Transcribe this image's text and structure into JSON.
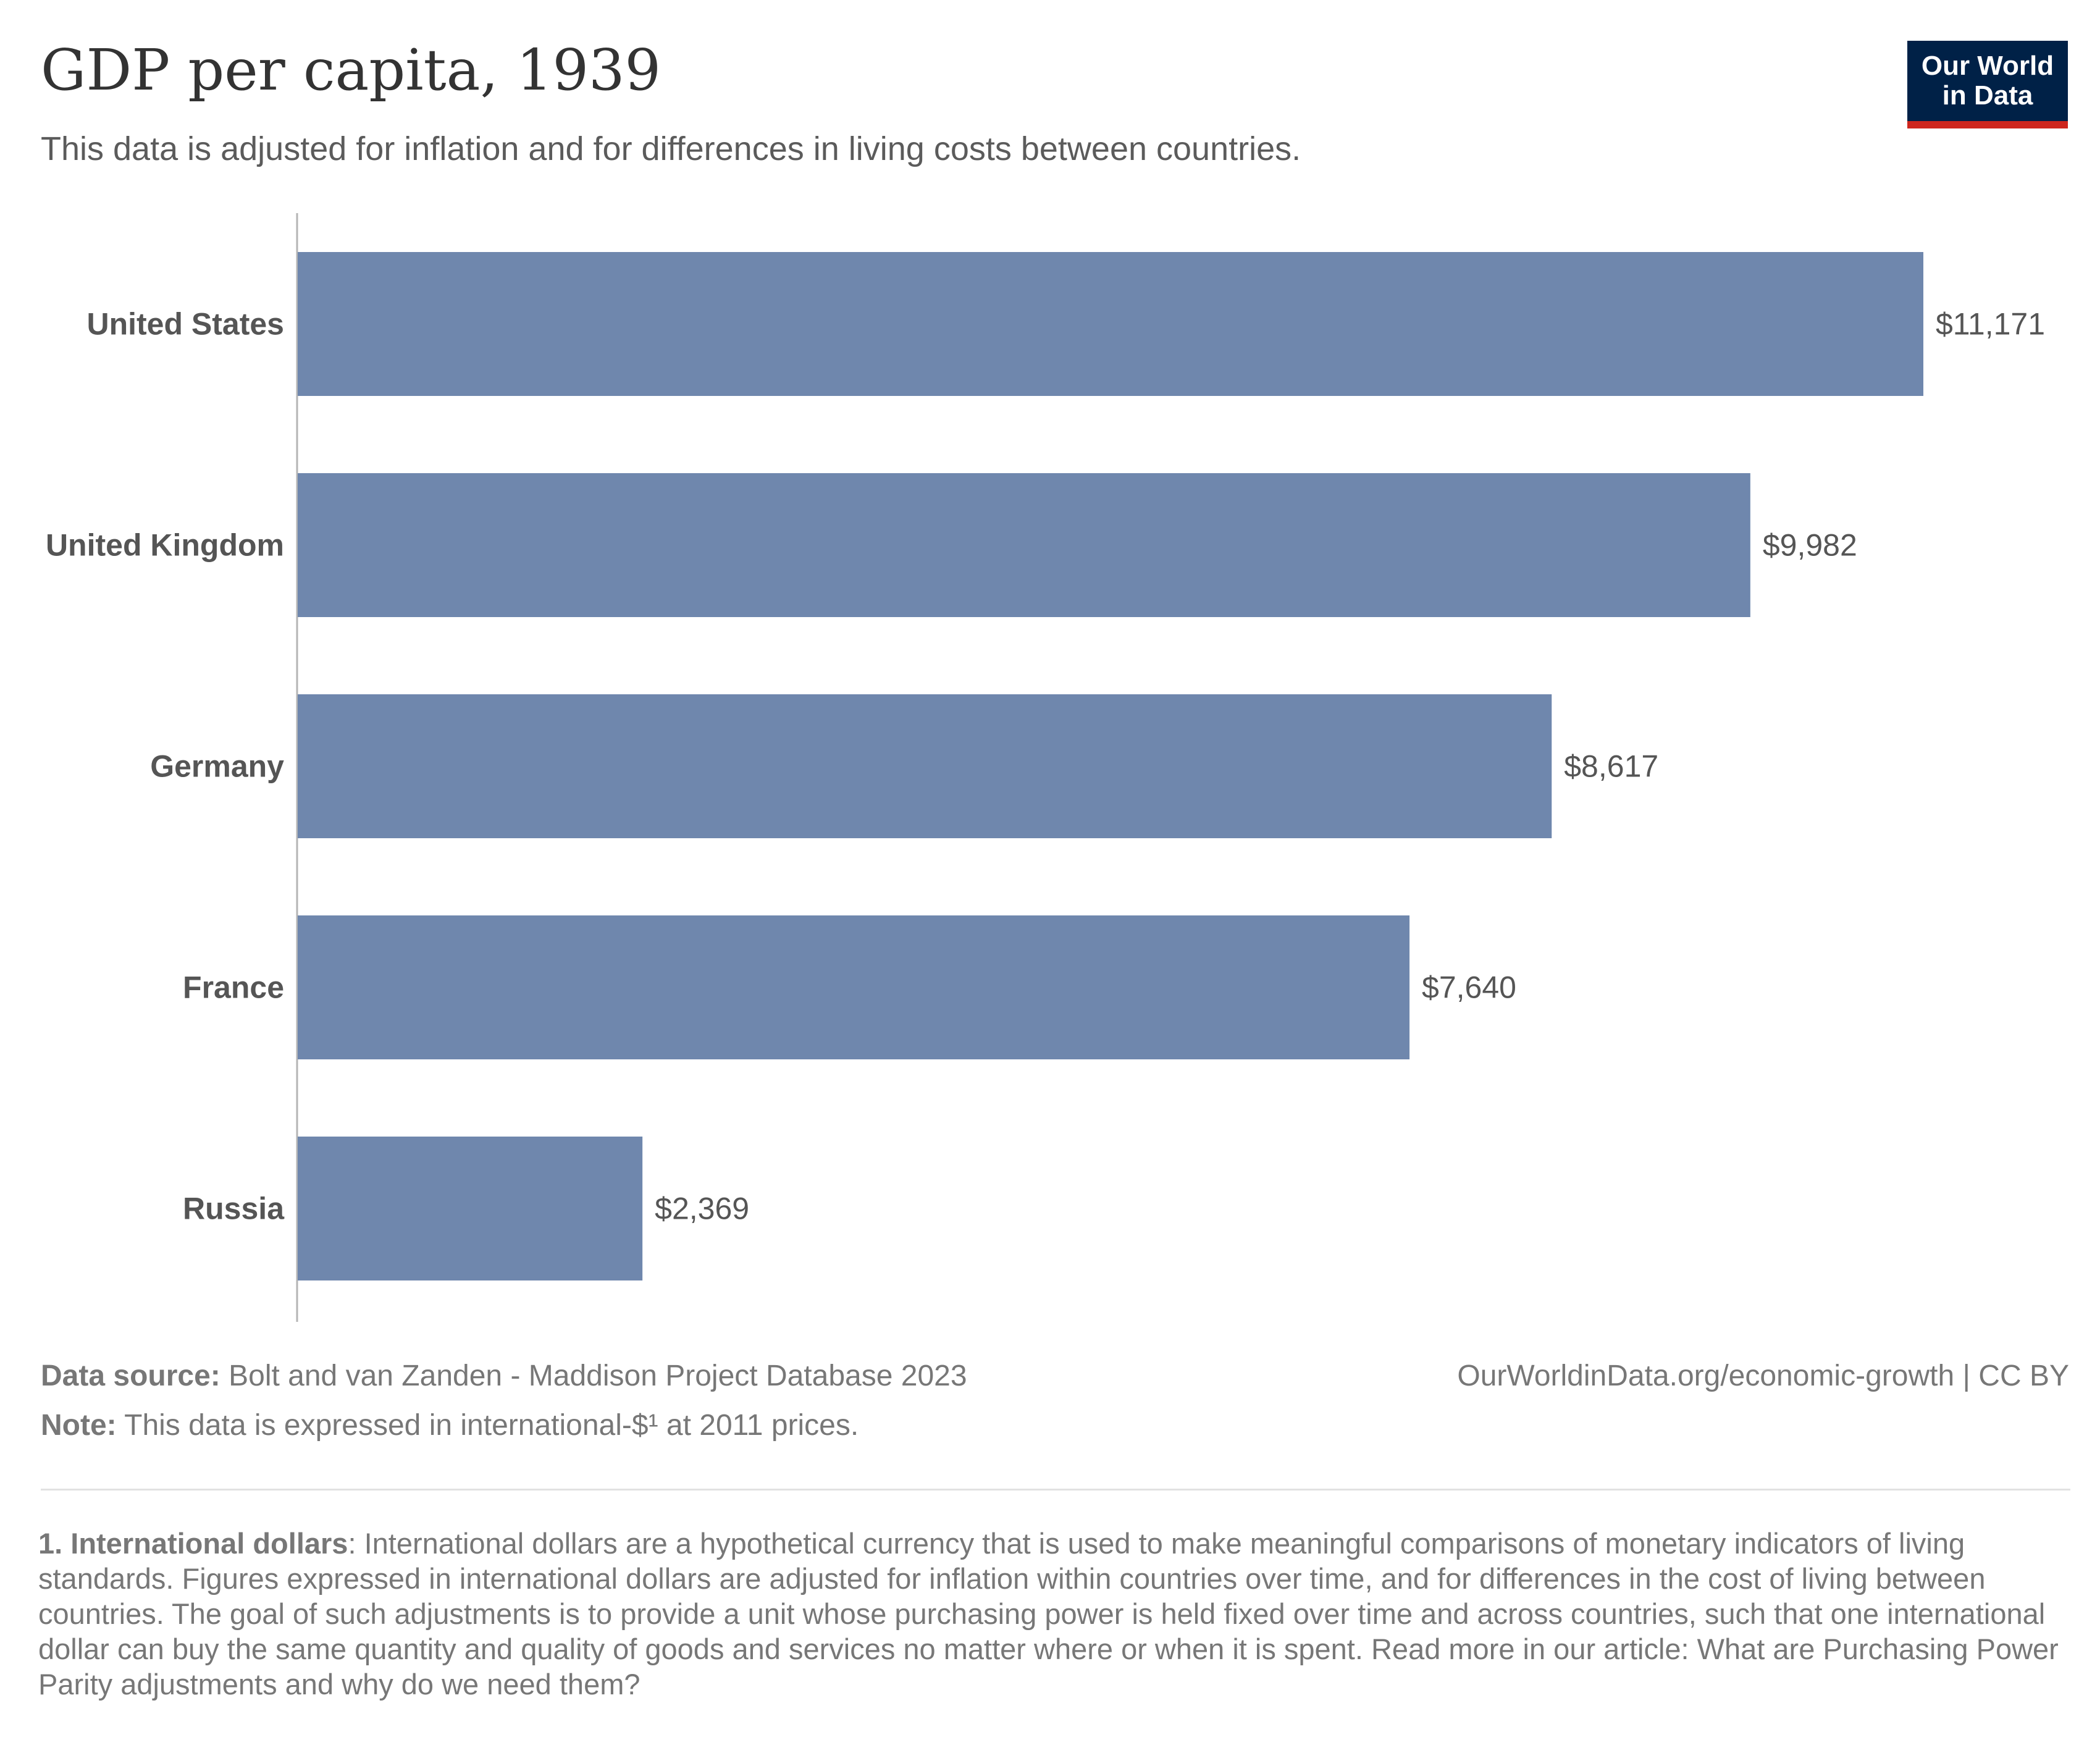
{
  "header": {
    "title": "GDP per capita, 1939",
    "subtitle": "This data is adjusted for inflation and for differences in living costs between countries.",
    "logo_line1": "Our World",
    "logo_line2": "in Data"
  },
  "chart_data": {
    "type": "bar",
    "orientation": "horizontal",
    "categories": [
      "United States",
      "United Kingdom",
      "Germany",
      "France",
      "Russia"
    ],
    "values": [
      11171,
      9982,
      8617,
      7640,
      2369
    ],
    "value_labels": [
      "$11,171",
      "$9,982",
      "$8,617",
      "$7,640",
      "$2,369"
    ],
    "bar_color": "#6f87ad",
    "xlim": [
      0,
      11171
    ],
    "grid": false
  },
  "footer": {
    "source_label": "Data source:",
    "source_text": "Bolt and van Zanden - Maddison Project Database 2023",
    "url": "OurWorldinData.org/economic-growth",
    "license": "| CC BY",
    "note_label": "Note:",
    "note_text": "This data is expressed in international-$¹ at 2011 prices.",
    "footnote_label": "1. International dollars",
    "footnote_text": ": International dollars are a hypothetical currency that is used to make meaningful comparisons of monetary indicators of living standards. Figures expressed in international dollars are adjusted for inflation within countries over time, and for differences in the cost of living between countries. The goal of such adjustments is to provide a unit whose purchasing power is held fixed over time and across countries, such that one international dollar can buy the same quantity and quality of goods and services no matter where or when it is spent. Read more in our article: What are Purchasing Power Parity adjustments and why do we need them?"
  }
}
